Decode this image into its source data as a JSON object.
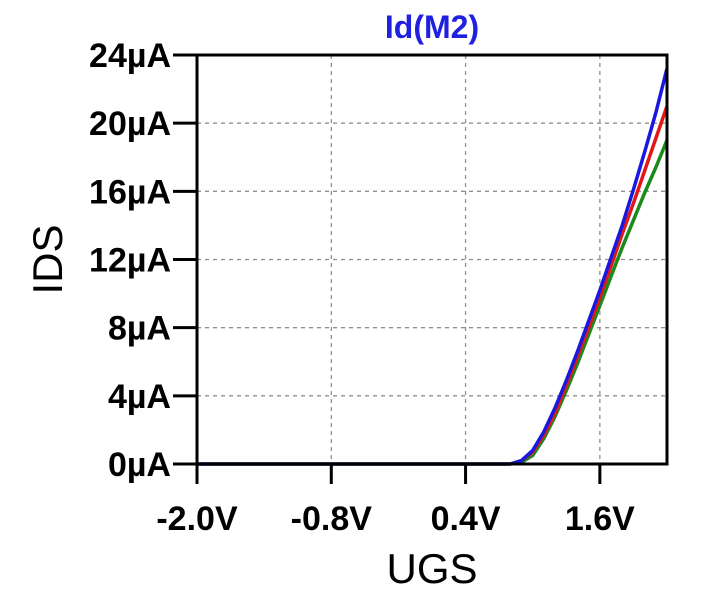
{
  "chart_data": {
    "type": "line",
    "title": "Id(M2)",
    "title_color": "#2020e0",
    "xlabel": "UGS",
    "ylabel": "IDS",
    "xlim": [
      -2.0,
      2.2
    ],
    "ylim": [
      0,
      24
    ],
    "x_ticks": [
      -2.0,
      -0.8,
      0.4,
      1.6
    ],
    "x_tick_labels": [
      "-2.0V",
      "-0.8V",
      "0.4V",
      "1.6V"
    ],
    "y_ticks": [
      0,
      4,
      8,
      12,
      16,
      20,
      24
    ],
    "y_tick_labels": [
      "0µA",
      "4µA",
      "8µA",
      "12µA",
      "16µA",
      "20µA",
      "24µA"
    ],
    "grid": true,
    "legend": "none",
    "series": [
      {
        "color": "#1a8a1a",
        "x": [
          -2.0,
          0.8,
          0.9,
          1.0,
          1.1,
          1.2,
          1.3,
          1.4,
          1.5,
          1.6,
          1.7,
          1.8,
          1.9,
          2.0,
          2.1,
          2.2
        ],
        "values": [
          0,
          0,
          0.1,
          0.5,
          1.5,
          2.8,
          4.3,
          5.9,
          7.6,
          9.3,
          11.0,
          12.7,
          14.3,
          15.9,
          17.4,
          19.0
        ]
      },
      {
        "color": "#e01818",
        "x": [
          -2.0,
          0.8,
          0.9,
          1.0,
          1.1,
          1.2,
          1.3,
          1.4,
          1.5,
          1.6,
          1.7,
          1.8,
          1.9,
          2.0,
          2.1,
          2.2
        ],
        "values": [
          0,
          0,
          0.2,
          0.7,
          1.7,
          3.0,
          4.6,
          6.3,
          8.0,
          9.8,
          11.6,
          13.5,
          15.3,
          17.2,
          19.1,
          21.0
        ]
      },
      {
        "color": "#1818e0",
        "x": [
          -2.0,
          0.8,
          0.9,
          1.0,
          1.1,
          1.2,
          1.3,
          1.4,
          1.5,
          1.6,
          1.7,
          1.8,
          1.9,
          2.0,
          2.1,
          2.2
        ],
        "values": [
          0,
          0,
          0.2,
          0.8,
          1.9,
          3.3,
          4.9,
          6.6,
          8.4,
          10.2,
          12.1,
          14.0,
          16.1,
          18.3,
          20.6,
          23.2
        ]
      }
    ]
  }
}
